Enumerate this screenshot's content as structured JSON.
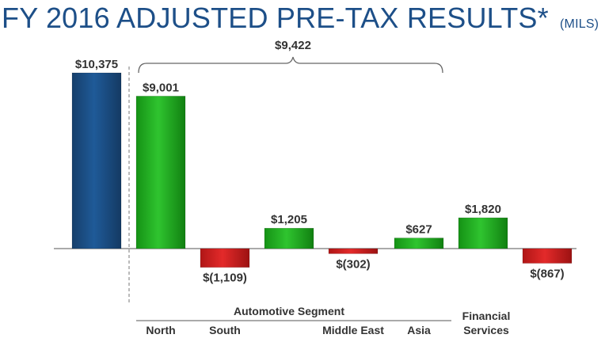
{
  "title": {
    "main": "FY 2016 ADJUSTED PRE-TAX RESULTS*",
    "unit": "(MILS)"
  },
  "colors": {
    "total": "#1b4f86",
    "positive": "#22b022",
    "negative": "#d42020",
    "title": "#1d4f88"
  },
  "chart_data": {
    "type": "bar",
    "title": "FY 2016 ADJUSTED PRE-TAX RESULTS*",
    "unit": "(MILS)",
    "categories": [
      "",
      "North",
      "South",
      "",
      "Middle East",
      "Asia",
      "",
      ""
    ],
    "values": [
      10375,
      9001,
      -1109,
      1205,
      -302,
      627,
      1820,
      -867
    ],
    "value_labels": [
      "$10,375",
      "$9,001",
      "$(1,109)",
      "$1,205",
      "$(302)",
      "$627",
      "$1,820",
      "$(867)"
    ],
    "bar_kinds": [
      "total",
      "positive",
      "negative",
      "positive",
      "negative",
      "positive",
      "positive",
      "negative"
    ],
    "bracket": {
      "label": "$9,422",
      "from_index": 1,
      "to_index": 5
    },
    "group_labels": {
      "automotive": "Automotive Segment",
      "financial_line1": "Financial",
      "financial_line2": "Services"
    },
    "ylim": [
      -1500,
      10375
    ],
    "grid": false
  }
}
